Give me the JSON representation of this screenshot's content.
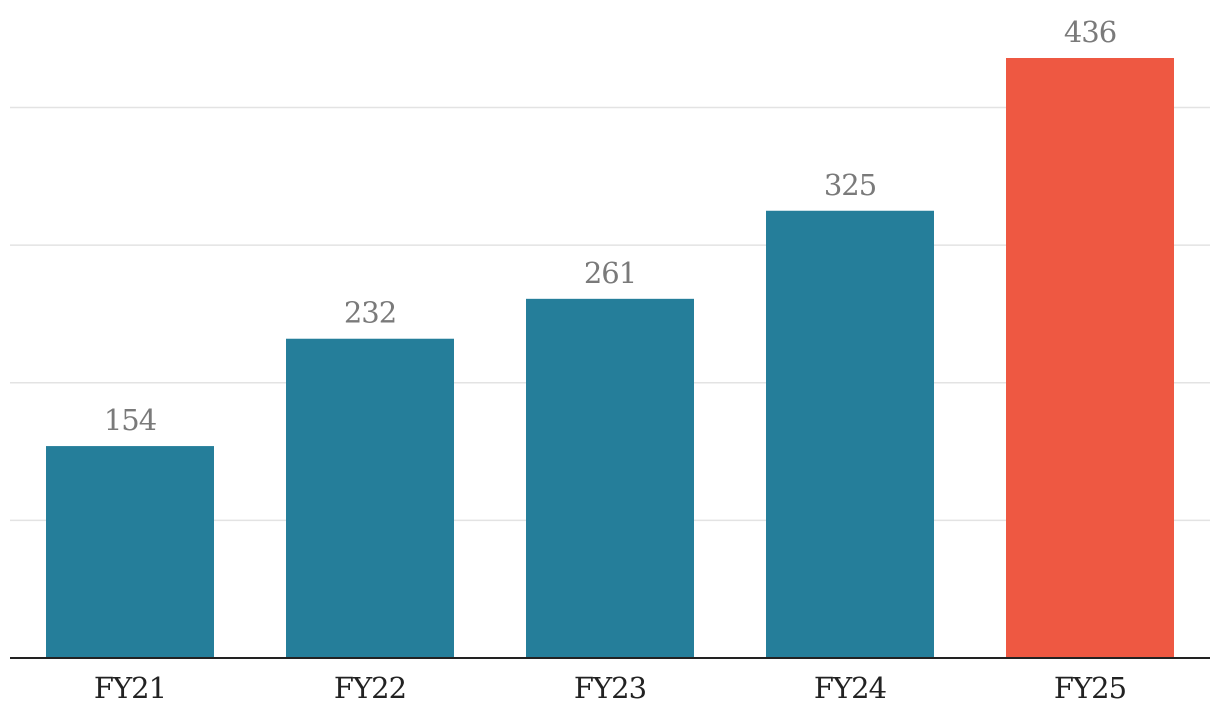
{
  "chart_data": {
    "type": "bar",
    "categories": [
      "FY21",
      "FY22",
      "FY23",
      "FY24",
      "FY25"
    ],
    "values": [
      154,
      232,
      261,
      325,
      436
    ],
    "title": "",
    "xlabel": "",
    "ylabel": "",
    "ylim": [
      0,
      436
    ],
    "gridlines": [
      100,
      200,
      300,
      400
    ],
    "grid": true,
    "show_y_tick_labels": false,
    "colors": {
      "default": "#257e9a",
      "highlight": "#ee5842",
      "highlight_index": 4,
      "grid": "#e3e3e3",
      "baseline": "#222222",
      "value_label": "#7a7a7a",
      "category_label": "#222222"
    }
  }
}
